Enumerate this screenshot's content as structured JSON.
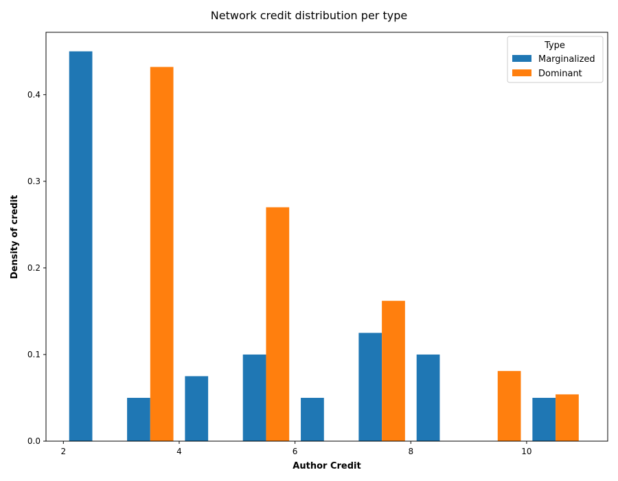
{
  "chart_data": {
    "type": "bar",
    "title": "Network credit distribution per type",
    "xlabel": "Author Credit",
    "ylabel": "Density of credit",
    "xlim": [
      1.7,
      11.4
    ],
    "ylim": [
      0,
      0.472
    ],
    "xticks": [
      2,
      4,
      6,
      8,
      10
    ],
    "yticks": [
      0.0,
      0.1,
      0.2,
      0.3,
      0.4
    ],
    "bin_width": 0.4,
    "grid": false,
    "legend": {
      "title": "Type",
      "placement": "top-right"
    },
    "series": [
      {
        "name": "Marginalized",
        "color": "#1f77b4",
        "bars": [
          {
            "x": 2.3,
            "value": 0.45
          },
          {
            "x": 3.3,
            "value": 0.05
          },
          {
            "x": 4.3,
            "value": 0.075
          },
          {
            "x": 5.3,
            "value": 0.1
          },
          {
            "x": 6.3,
            "value": 0.05
          },
          {
            "x": 7.3,
            "value": 0.125
          },
          {
            "x": 8.3,
            "value": 0.1
          },
          {
            "x": 10.3,
            "value": 0.05
          }
        ]
      },
      {
        "name": "Dominant",
        "color": "#ff7f0e",
        "bars": [
          {
            "x": 3.7,
            "value": 0.432
          },
          {
            "x": 5.7,
            "value": 0.27
          },
          {
            "x": 7.7,
            "value": 0.162
          },
          {
            "x": 9.7,
            "value": 0.081
          },
          {
            "x": 10.7,
            "value": 0.054
          }
        ]
      }
    ]
  }
}
